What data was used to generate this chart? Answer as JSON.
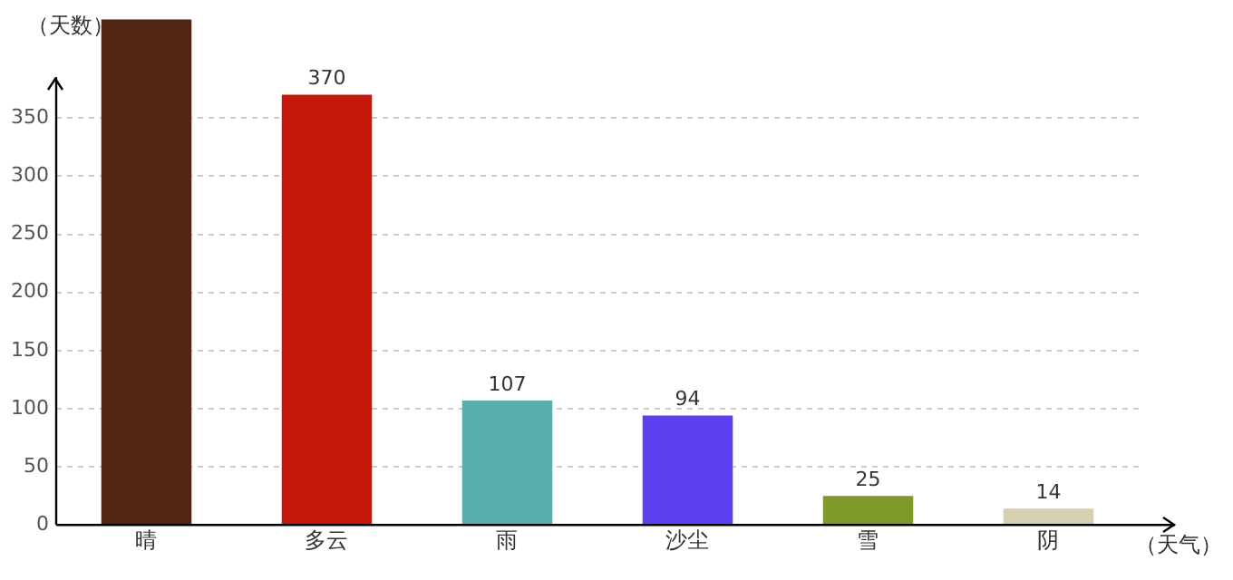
{
  "chart_data": {
    "type": "bar",
    "xlabel": "（天气）",
    "ylabel": "（天数）",
    "categories": [
      "晴",
      "多云",
      "雨",
      "沙尘",
      "雪",
      "阴"
    ],
    "values": [
      435,
      370,
      107,
      94,
      25,
      14
    ],
    "colors": [
      "#532614",
      "#c4190a",
      "#5aadad",
      "#5e3ff0",
      "#7f9a2a",
      "#d6cfb0"
    ],
    "value_labels": [
      null,
      "370",
      "107",
      "94",
      "25",
      "14"
    ],
    "ylim": [
      0,
      435
    ],
    "yticks": [
      0,
      50,
      100,
      150,
      200,
      250,
      300,
      350
    ],
    "grid": "y",
    "legend": false
  }
}
